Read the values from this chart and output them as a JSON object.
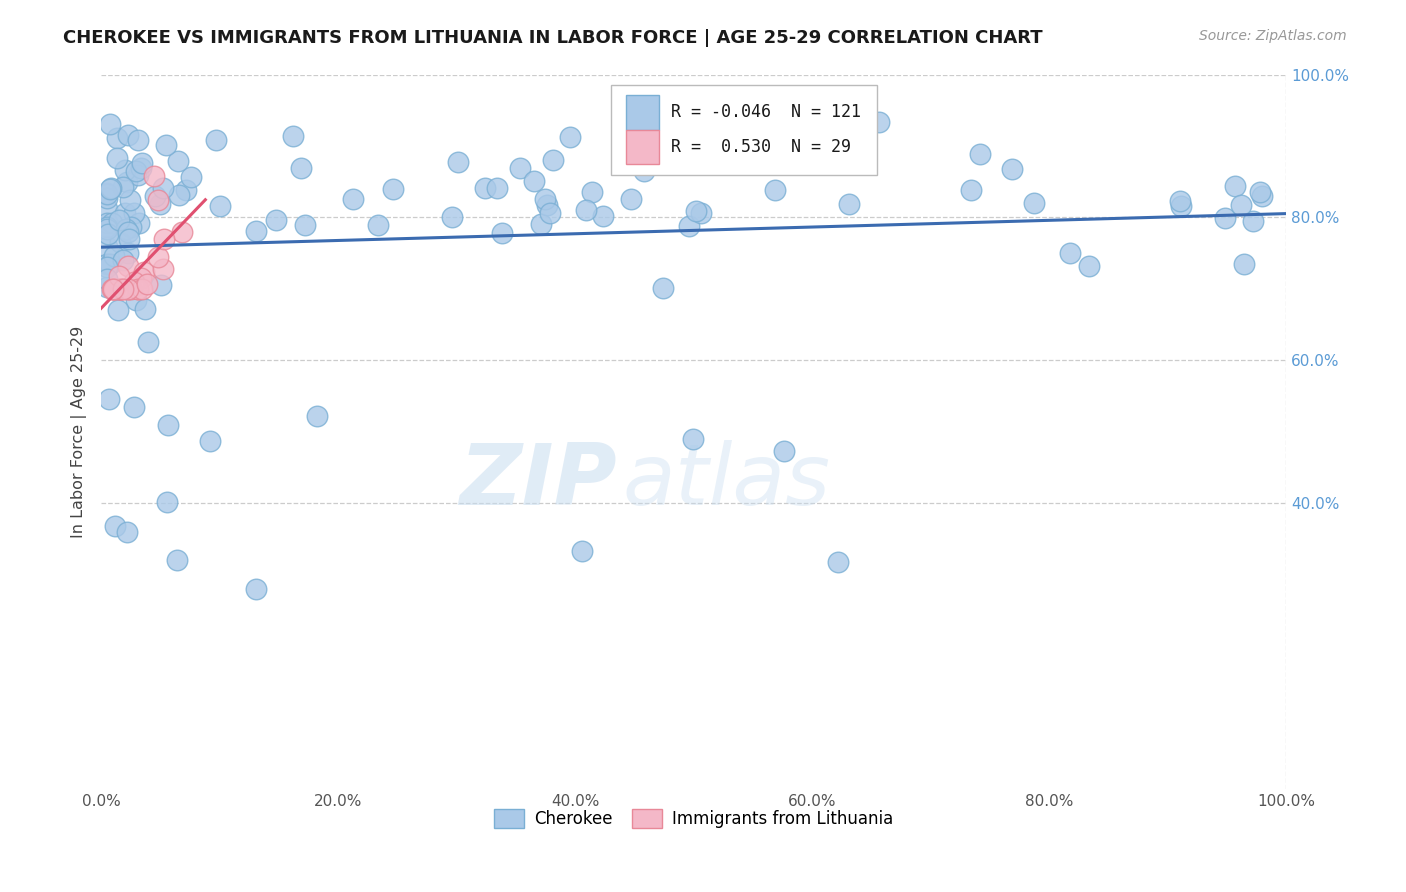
{
  "title": "CHEROKEE VS IMMIGRANTS FROM LITHUANIA IN LABOR FORCE | AGE 25-29 CORRELATION CHART",
  "source": "Source: ZipAtlas.com",
  "ylabel": "In Labor Force | Age 25-29",
  "cherokee_R": -0.046,
  "cherokee_N": 121,
  "lithuania_R": 0.53,
  "lithuania_N": 29,
  "cherokee_color": "#aac9e8",
  "cherokee_edge": "#7aafd4",
  "lithuania_color": "#f4b8c8",
  "lithuania_edge": "#e88898",
  "cherokee_line_color": "#3b6bb0",
  "lithuania_line_color": "#e05070",
  "watermark_zip": "ZIP",
  "watermark_atlas": "atlas",
  "legend_label_cherokee": "Cherokee",
  "legend_label_lithuania": "Immigrants from Lithuania",
  "ytick_color": "#5b9bd5",
  "title_fontsize": 13,
  "source_fontsize": 10
}
